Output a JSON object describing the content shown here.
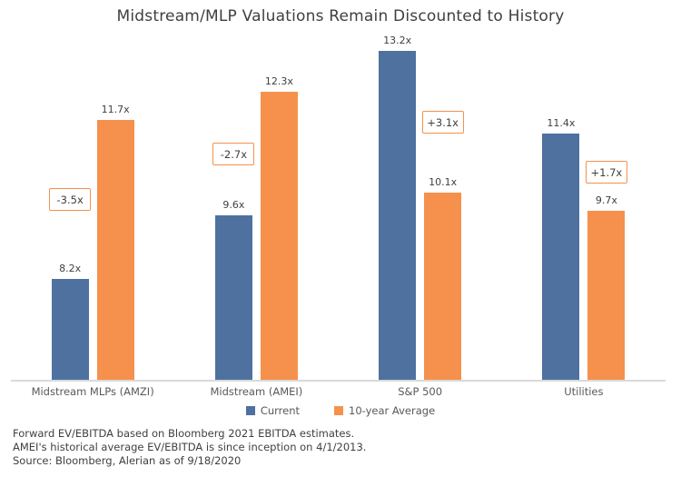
{
  "chart_data": {
    "type": "bar",
    "title": "Midstream/MLP Valuations Remain Discounted to History",
    "categories": [
      "Midstream MLPs (AMZI)",
      "Midstream (AMEI)",
      "S&P 500",
      "Utilities"
    ],
    "series": [
      {
        "name": "Current",
        "color": "#4e71a0",
        "values": [
          8.2,
          9.6,
          13.2,
          11.4
        ]
      },
      {
        "name": "10-year Average",
        "color": "#f5914d",
        "values": [
          11.7,
          12.3,
          10.1,
          9.7
        ]
      }
    ],
    "value_suffix": "x",
    "value_labels": {
      "current": [
        "8.2x",
        "9.6x",
        "13.2x",
        "11.4x"
      ],
      "average": [
        "11.7x",
        "12.3x",
        "10.1x",
        "9.7x"
      ]
    },
    "deltas": [
      "-3.5x",
      "-2.7x",
      "+3.1x",
      "+1.7x"
    ],
    "xlabel": "",
    "ylabel": "",
    "ylim": [
      6,
      14
    ],
    "grid": false,
    "legend_position": "bottom"
  },
  "colors": {
    "current_bar": "#4e71a0",
    "average_bar": "#f5914d",
    "delta_border": "#f5914d",
    "axis_line": "#d9d9d9",
    "title_text": "#3f3f3f",
    "label_text": "#404040",
    "category_text": "#595959"
  },
  "footnotes": [
    "Forward EV/EBITDA based on Bloomberg 2021 EBITDA estimates.",
    "AMEI's historical average EV/EBITDA is since inception on 4/1/2013.",
    "Source: Bloomberg, Alerian as of 9/18/2020"
  ]
}
